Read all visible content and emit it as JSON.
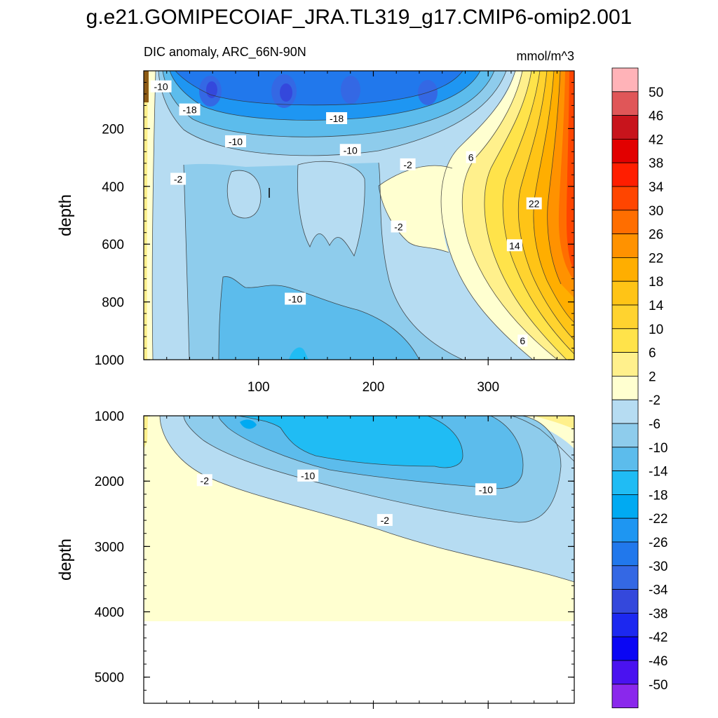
{
  "title": "g.e21.GOMIPECOIAF_JRA.TL319_g17.CMIP6-omip2.001",
  "chart_data": [
    {
      "type": "heatmap",
      "panel": "upper",
      "subtitle": "DIC anomaly, ARC_66N-90N",
      "units": "mmol/m^3",
      "xlabel": "",
      "ylabel": "depth",
      "xlim": [
        0,
        375
      ],
      "ylim": [
        0,
        1000
      ],
      "y_reversed": true,
      "xticks": [
        100,
        200,
        300
      ],
      "yticks": [
        200,
        400,
        600,
        800,
        1000
      ],
      "contour_labels": [
        {
          "text": "-10",
          "x": 15,
          "y": 55
        },
        {
          "text": "-18",
          "x": 40,
          "y": 135
        },
        {
          "text": "-18",
          "x": 168,
          "y": 165
        },
        {
          "text": "-10",
          "x": 80,
          "y": 245
        },
        {
          "text": "-10",
          "x": 180,
          "y": 275
        },
        {
          "text": "-2",
          "x": 30,
          "y": 375
        },
        {
          "text": "-2",
          "x": 230,
          "y": 325
        },
        {
          "text": "6",
          "x": 285,
          "y": 300
        },
        {
          "text": "22",
          "x": 340,
          "y": 460
        },
        {
          "text": "-2",
          "x": 222,
          "y": 540
        },
        {
          "text": "14",
          "x": 323,
          "y": 605
        },
        {
          "text": "-10",
          "x": 132,
          "y": 790
        },
        {
          "text": "6",
          "x": 330,
          "y": 935
        }
      ]
    },
    {
      "type": "heatmap",
      "panel": "lower",
      "xlabel": "",
      "ylabel": "depth",
      "xlim": [
        0,
        375
      ],
      "ylim": [
        1000,
        5400
      ],
      "y_reversed": true,
      "xticks": [
        100,
        200,
        300
      ],
      "yticks": [
        1000,
        2000,
        3000,
        4000,
        5000
      ],
      "contour_labels": [
        {
          "text": "-2",
          "x": 53,
          "y": 1990
        },
        {
          "text": "-10",
          "x": 143,
          "y": 1920
        },
        {
          "text": "-10",
          "x": 298,
          "y": 2130
        },
        {
          "text": "-2",
          "x": 210,
          "y": 2600
        }
      ]
    }
  ],
  "colorbar": {
    "levels": [
      "50",
      "46",
      "42",
      "38",
      "34",
      "30",
      "26",
      "22",
      "18",
      "14",
      "10",
      "6",
      "2",
      "-2",
      "-6",
      "-10",
      "-14",
      "-18",
      "-22",
      "-26",
      "-30",
      "-34",
      "-38",
      "-42",
      "-46",
      "-50"
    ],
    "colors": [
      "#FFB3B8",
      "#E05658",
      "#C8141C",
      "#E20000",
      "#FF1E00",
      "#FF4500",
      "#FF6E00",
      "#FF9200",
      "#FFAE00",
      "#FFC416",
      "#FFD32F",
      "#FFE34A",
      "#FFF08C",
      "#FFFFD0",
      "#B6DCF2",
      "#8ECCEC",
      "#5CBCEC",
      "#20BCF4",
      "#00AAF2",
      "#1E96F2",
      "#2178EC",
      "#3468E4",
      "#3448DC",
      "#1C28F0",
      "#0A06F4",
      "#4A12F0",
      "#8A28EC"
    ]
  }
}
